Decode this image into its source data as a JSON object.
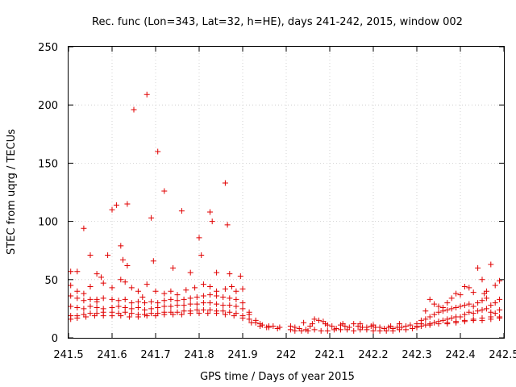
{
  "chart_data": {
    "type": "scatter",
    "title": "Rec. func (Lon=343, Lat=32, h=HE), days 241-242, 2015, window 002",
    "xlabel": "GPS time / Days of year 2015",
    "ylabel": "STEC from uqrg / TECUs",
    "xlim": [
      241.5,
      242.5
    ],
    "ylim": [
      0,
      250
    ],
    "xticks": [
      241.5,
      241.6,
      241.7,
      241.8,
      241.9,
      242.0,
      242.1,
      242.2,
      242.3,
      242.4,
      242.5
    ],
    "xtick_labels": [
      "241.5",
      "241.6",
      "241.7",
      "241.8",
      "241.9",
      "242",
      "242.1",
      "242.2",
      "242.3",
      "242.4",
      "242.5"
    ],
    "yticks": [
      0,
      50,
      100,
      150,
      200,
      250
    ],
    "ytick_labels": [
      "0",
      "50",
      "100",
      "150",
      "200",
      "250"
    ],
    "grid": true,
    "marker": "+",
    "marker_color": "#e00000",
    "points": [
      [
        241.505,
        57
      ],
      [
        241.52,
        57
      ],
      [
        241.535,
        94
      ],
      [
        241.55,
        71
      ],
      [
        241.565,
        55
      ],
      [
        241.575,
        52
      ],
      [
        241.59,
        71
      ],
      [
        241.6,
        110
      ],
      [
        241.61,
        114
      ],
      [
        241.62,
        79
      ],
      [
        241.625,
        67
      ],
      [
        241.635,
        115
      ],
      [
        241.635,
        62
      ],
      [
        241.65,
        196
      ],
      [
        241.68,
        209
      ],
      [
        241.69,
        103
      ],
      [
        241.695,
        66
      ],
      [
        241.705,
        160
      ],
      [
        241.72,
        126
      ],
      [
        241.74,
        60
      ],
      [
        241.76,
        109
      ],
      [
        241.78,
        56
      ],
      [
        241.8,
        86
      ],
      [
        241.805,
        71
      ],
      [
        241.825,
        108
      ],
      [
        241.83,
        100
      ],
      [
        241.84,
        56
      ],
      [
        241.86,
        133
      ],
      [
        241.865,
        97
      ],
      [
        241.87,
        55
      ],
      [
        241.895,
        53
      ],
      [
        241.505,
        45
      ],
      [
        241.52,
        40
      ],
      [
        241.535,
        38
      ],
      [
        241.55,
        44
      ],
      [
        241.565,
        33
      ],
      [
        241.58,
        47
      ],
      [
        241.6,
        43
      ],
      [
        241.62,
        50
      ],
      [
        241.63,
        48
      ],
      [
        241.645,
        43
      ],
      [
        241.66,
        40
      ],
      [
        241.67,
        35
      ],
      [
        241.68,
        46
      ],
      [
        241.7,
        40
      ],
      [
        241.72,
        38
      ],
      [
        241.735,
        40
      ],
      [
        241.75,
        37
      ],
      [
        241.77,
        41
      ],
      [
        241.79,
        43
      ],
      [
        241.81,
        46
      ],
      [
        241.825,
        44
      ],
      [
        241.84,
        40
      ],
      [
        241.86,
        42
      ],
      [
        241.875,
        44
      ],
      [
        241.885,
        40
      ],
      [
        241.9,
        42
      ],
      [
        241.505,
        36
      ],
      [
        241.52,
        34
      ],
      [
        241.535,
        32
      ],
      [
        241.55,
        33
      ],
      [
        241.565,
        31
      ],
      [
        241.58,
        34
      ],
      [
        241.6,
        33
      ],
      [
        241.615,
        32
      ],
      [
        241.63,
        33
      ],
      [
        241.645,
        30
      ],
      [
        241.66,
        31
      ],
      [
        241.675,
        30
      ],
      [
        241.69,
        31
      ],
      [
        241.705,
        30
      ],
      [
        241.72,
        32
      ],
      [
        241.735,
        33
      ],
      [
        241.75,
        32
      ],
      [
        241.765,
        33
      ],
      [
        241.78,
        34
      ],
      [
        241.795,
        35
      ],
      [
        241.81,
        36
      ],
      [
        241.825,
        37
      ],
      [
        241.84,
        36
      ],
      [
        241.855,
        35
      ],
      [
        241.87,
        34
      ],
      [
        241.885,
        33
      ],
      [
        241.9,
        30
      ],
      [
        241.915,
        22
      ],
      [
        241.505,
        27
      ],
      [
        241.52,
        26
      ],
      [
        241.535,
        25
      ],
      [
        241.55,
        27
      ],
      [
        241.565,
        26
      ],
      [
        241.58,
        25
      ],
      [
        241.6,
        26
      ],
      [
        241.615,
        27
      ],
      [
        241.63,
        26
      ],
      [
        241.645,
        25
      ],
      [
        241.66,
        26
      ],
      [
        241.675,
        24
      ],
      [
        241.69,
        25
      ],
      [
        241.705,
        26
      ],
      [
        241.72,
        27
      ],
      [
        241.735,
        27
      ],
      [
        241.75,
        28
      ],
      [
        241.765,
        28
      ],
      [
        241.78,
        29
      ],
      [
        241.795,
        29
      ],
      [
        241.81,
        30
      ],
      [
        241.825,
        30
      ],
      [
        241.84,
        29
      ],
      [
        241.855,
        28
      ],
      [
        241.87,
        28
      ],
      [
        241.885,
        27
      ],
      [
        241.9,
        25
      ],
      [
        241.915,
        20
      ],
      [
        241.93,
        15
      ],
      [
        241.505,
        19
      ],
      [
        241.52,
        19
      ],
      [
        241.535,
        20
      ],
      [
        241.55,
        21
      ],
      [
        241.565,
        21
      ],
      [
        241.58,
        22
      ],
      [
        241.6,
        22
      ],
      [
        241.615,
        21
      ],
      [
        241.63,
        22
      ],
      [
        241.645,
        21
      ],
      [
        241.66,
        20
      ],
      [
        241.675,
        20
      ],
      [
        241.69,
        21
      ],
      [
        241.705,
        21
      ],
      [
        241.72,
        22
      ],
      [
        241.735,
        22
      ],
      [
        241.75,
        22
      ],
      [
        241.765,
        23
      ],
      [
        241.78,
        23
      ],
      [
        241.795,
        24
      ],
      [
        241.81,
        24
      ],
      [
        241.825,
        24
      ],
      [
        241.84,
        23
      ],
      [
        241.855,
        23
      ],
      [
        241.87,
        22
      ],
      [
        241.885,
        21
      ],
      [
        241.9,
        19
      ],
      [
        241.915,
        16
      ],
      [
        241.93,
        13
      ],
      [
        241.945,
        11
      ],
      [
        241.96,
        10
      ],
      [
        241.505,
        16
      ],
      [
        241.52,
        17
      ],
      [
        241.54,
        18
      ],
      [
        241.56,
        19
      ],
      [
        241.58,
        19
      ],
      [
        241.6,
        19
      ],
      [
        241.62,
        19
      ],
      [
        241.64,
        18
      ],
      [
        241.66,
        18
      ],
      [
        241.68,
        19
      ],
      [
        241.7,
        19
      ],
      [
        241.72,
        20
      ],
      [
        241.74,
        20
      ],
      [
        241.76,
        20
      ],
      [
        241.78,
        21
      ],
      [
        241.8,
        21
      ],
      [
        241.82,
        21
      ],
      [
        241.84,
        21
      ],
      [
        241.86,
        20
      ],
      [
        241.88,
        19
      ],
      [
        241.9,
        17
      ],
      [
        241.92,
        13
      ],
      [
        241.94,
        10
      ],
      [
        241.96,
        9
      ],
      [
        241.98,
        8
      ],
      [
        241.94,
        12
      ],
      [
        241.955,
        9
      ],
      [
        241.97,
        10
      ],
      [
        241.985,
        9
      ],
      [
        242.01,
        10
      ],
      [
        242.02,
        9
      ],
      [
        242.03,
        8
      ],
      [
        242.045,
        7
      ],
      [
        242.055,
        10
      ],
      [
        242.065,
        16
      ],
      [
        242.075,
        15
      ],
      [
        242.085,
        14
      ],
      [
        242.095,
        11
      ],
      [
        242.105,
        10
      ],
      [
        242.115,
        8
      ],
      [
        242.125,
        11
      ],
      [
        242.135,
        10
      ],
      [
        242.145,
        9
      ],
      [
        242.155,
        12
      ],
      [
        242.165,
        10
      ],
      [
        242.175,
        9
      ],
      [
        242.185,
        9
      ],
      [
        242.195,
        10
      ],
      [
        242.205,
        9
      ],
      [
        242.215,
        9
      ],
      [
        242.225,
        8
      ],
      [
        242.235,
        9
      ],
      [
        242.245,
        8
      ],
      [
        242.255,
        9
      ],
      [
        242.265,
        9
      ],
      [
        242.275,
        10
      ],
      [
        242.285,
        11
      ],
      [
        242.01,
        7
      ],
      [
        242.02,
        6
      ],
      [
        242.035,
        6
      ],
      [
        242.05,
        6
      ],
      [
        242.065,
        7
      ],
      [
        242.08,
        6
      ],
      [
        242.095,
        6
      ],
      [
        242.11,
        7
      ],
      [
        242.125,
        7
      ],
      [
        242.14,
        7
      ],
      [
        242.155,
        6
      ],
      [
        242.17,
        7
      ],
      [
        242.185,
        7
      ],
      [
        242.2,
        6
      ],
      [
        242.215,
        6
      ],
      [
        242.23,
        6
      ],
      [
        242.245,
        6
      ],
      [
        242.26,
        7
      ],
      [
        242.275,
        7
      ],
      [
        242.29,
        8
      ],
      [
        242.04,
        13
      ],
      [
        242.06,
        12
      ],
      [
        242.09,
        12
      ],
      [
        242.13,
        12
      ],
      [
        242.17,
        12
      ],
      [
        242.2,
        11
      ],
      [
        242.24,
        10
      ],
      [
        242.26,
        12
      ],
      [
        242.3,
        12
      ],
      [
        242.31,
        15
      ],
      [
        242.32,
        23
      ],
      [
        242.33,
        33
      ],
      [
        242.34,
        29
      ],
      [
        242.35,
        27
      ],
      [
        242.36,
        26
      ],
      [
        242.37,
        30
      ],
      [
        242.38,
        34
      ],
      [
        242.39,
        38
      ],
      [
        242.4,
        37
      ],
      [
        242.41,
        44
      ],
      [
        242.42,
        43
      ],
      [
        242.43,
        39
      ],
      [
        242.44,
        60
      ],
      [
        242.45,
        50
      ],
      [
        242.455,
        38
      ],
      [
        242.46,
        40
      ],
      [
        242.47,
        63
      ],
      [
        242.48,
        45
      ],
      [
        242.49,
        49
      ],
      [
        242.3,
        10
      ],
      [
        242.31,
        12
      ],
      [
        242.32,
        16
      ],
      [
        242.33,
        18
      ],
      [
        242.34,
        20
      ],
      [
        242.35,
        22
      ],
      [
        242.36,
        23
      ],
      [
        242.37,
        24
      ],
      [
        242.38,
        25
      ],
      [
        242.39,
        26
      ],
      [
        242.4,
        27
      ],
      [
        242.41,
        28
      ],
      [
        242.42,
        29
      ],
      [
        242.43,
        27
      ],
      [
        242.44,
        30
      ],
      [
        242.45,
        32
      ],
      [
        242.46,
        34
      ],
      [
        242.47,
        28
      ],
      [
        242.48,
        30
      ],
      [
        242.49,
        33
      ],
      [
        242.3,
        9
      ],
      [
        242.31,
        10
      ],
      [
        242.32,
        11
      ],
      [
        242.33,
        12
      ],
      [
        242.34,
        13
      ],
      [
        242.35,
        14
      ],
      [
        242.36,
        15
      ],
      [
        242.37,
        16
      ],
      [
        242.38,
        17
      ],
      [
        242.39,
        18
      ],
      [
        242.4,
        18
      ],
      [
        242.41,
        20
      ],
      [
        242.42,
        22
      ],
      [
        242.43,
        21
      ],
      [
        242.44,
        23
      ],
      [
        242.45,
        24
      ],
      [
        242.46,
        25
      ],
      [
        242.47,
        22
      ],
      [
        242.48,
        21
      ],
      [
        242.49,
        24
      ],
      [
        242.33,
        11
      ],
      [
        242.35,
        12
      ],
      [
        242.37,
        13
      ],
      [
        242.39,
        14
      ],
      [
        242.41,
        15
      ],
      [
        242.43,
        16
      ],
      [
        242.45,
        17
      ],
      [
        242.47,
        16
      ],
      [
        242.49,
        18
      ],
      [
        242.37,
        12
      ],
      [
        242.39,
        13
      ],
      [
        242.41,
        14
      ],
      [
        242.43,
        15
      ],
      [
        242.45,
        15
      ],
      [
        242.47,
        18
      ],
      [
        242.49,
        17
      ]
    ]
  }
}
